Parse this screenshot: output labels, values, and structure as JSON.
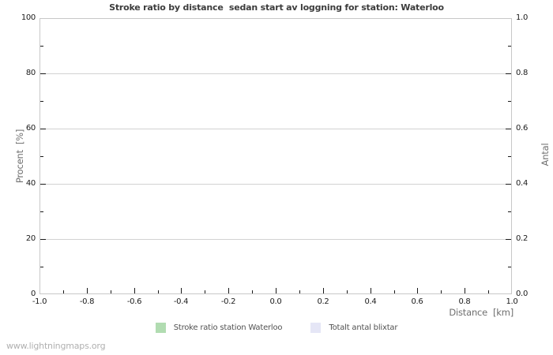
{
  "page": {
    "background": "#ffffff",
    "footer": "www.lightningmaps.org"
  },
  "chart_data": {
    "type": "line",
    "title": "Stroke ratio by distance  sedan start av loggning for station: Waterloo",
    "series": [],
    "note": "plot area is empty - no data points drawn",
    "grid": "horizontal-major-only",
    "x_axis": {
      "label": "Distance  [km]",
      "min": -1.0,
      "max": 1.0,
      "ticks": [
        "-1.0",
        "-0.8",
        "-0.6",
        "-0.4",
        "-0.2",
        "0.0",
        "0.2",
        "0.4",
        "0.6",
        "0.8",
        "1.0"
      ],
      "minor_between_majors": 1
    },
    "y_axis_left": {
      "label": "Procent  [%]",
      "min": 0,
      "max": 100,
      "ticks": [
        "0",
        "20",
        "40",
        "60",
        "80",
        "100"
      ],
      "minor_between_majors": 1
    },
    "y_axis_right": {
      "label": "Antal",
      "min": 0.0,
      "max": 1.0,
      "ticks": [
        "0.0",
        "0.2",
        "0.4",
        "0.6",
        "0.8",
        "1.0"
      ],
      "minor_between_majors": 1
    },
    "legend": {
      "position": "bottom-center",
      "entries": [
        {
          "label": "Stroke ratio station Waterloo",
          "color": "#b1dcb1"
        },
        {
          "label": "Totalt antal blixtar",
          "color": "#e5e6f6"
        }
      ]
    },
    "colors": {
      "title": "#3c3c3c",
      "tick_label": "#1c1c1c",
      "axis_title": "#6f6f6f",
      "grid_line": "#d2d2d2",
      "plot_border": "#c8c8c8",
      "tick_mark": "#1a1a1a",
      "legend_text": "#525252",
      "footer_text": "#b0b0b0"
    }
  }
}
